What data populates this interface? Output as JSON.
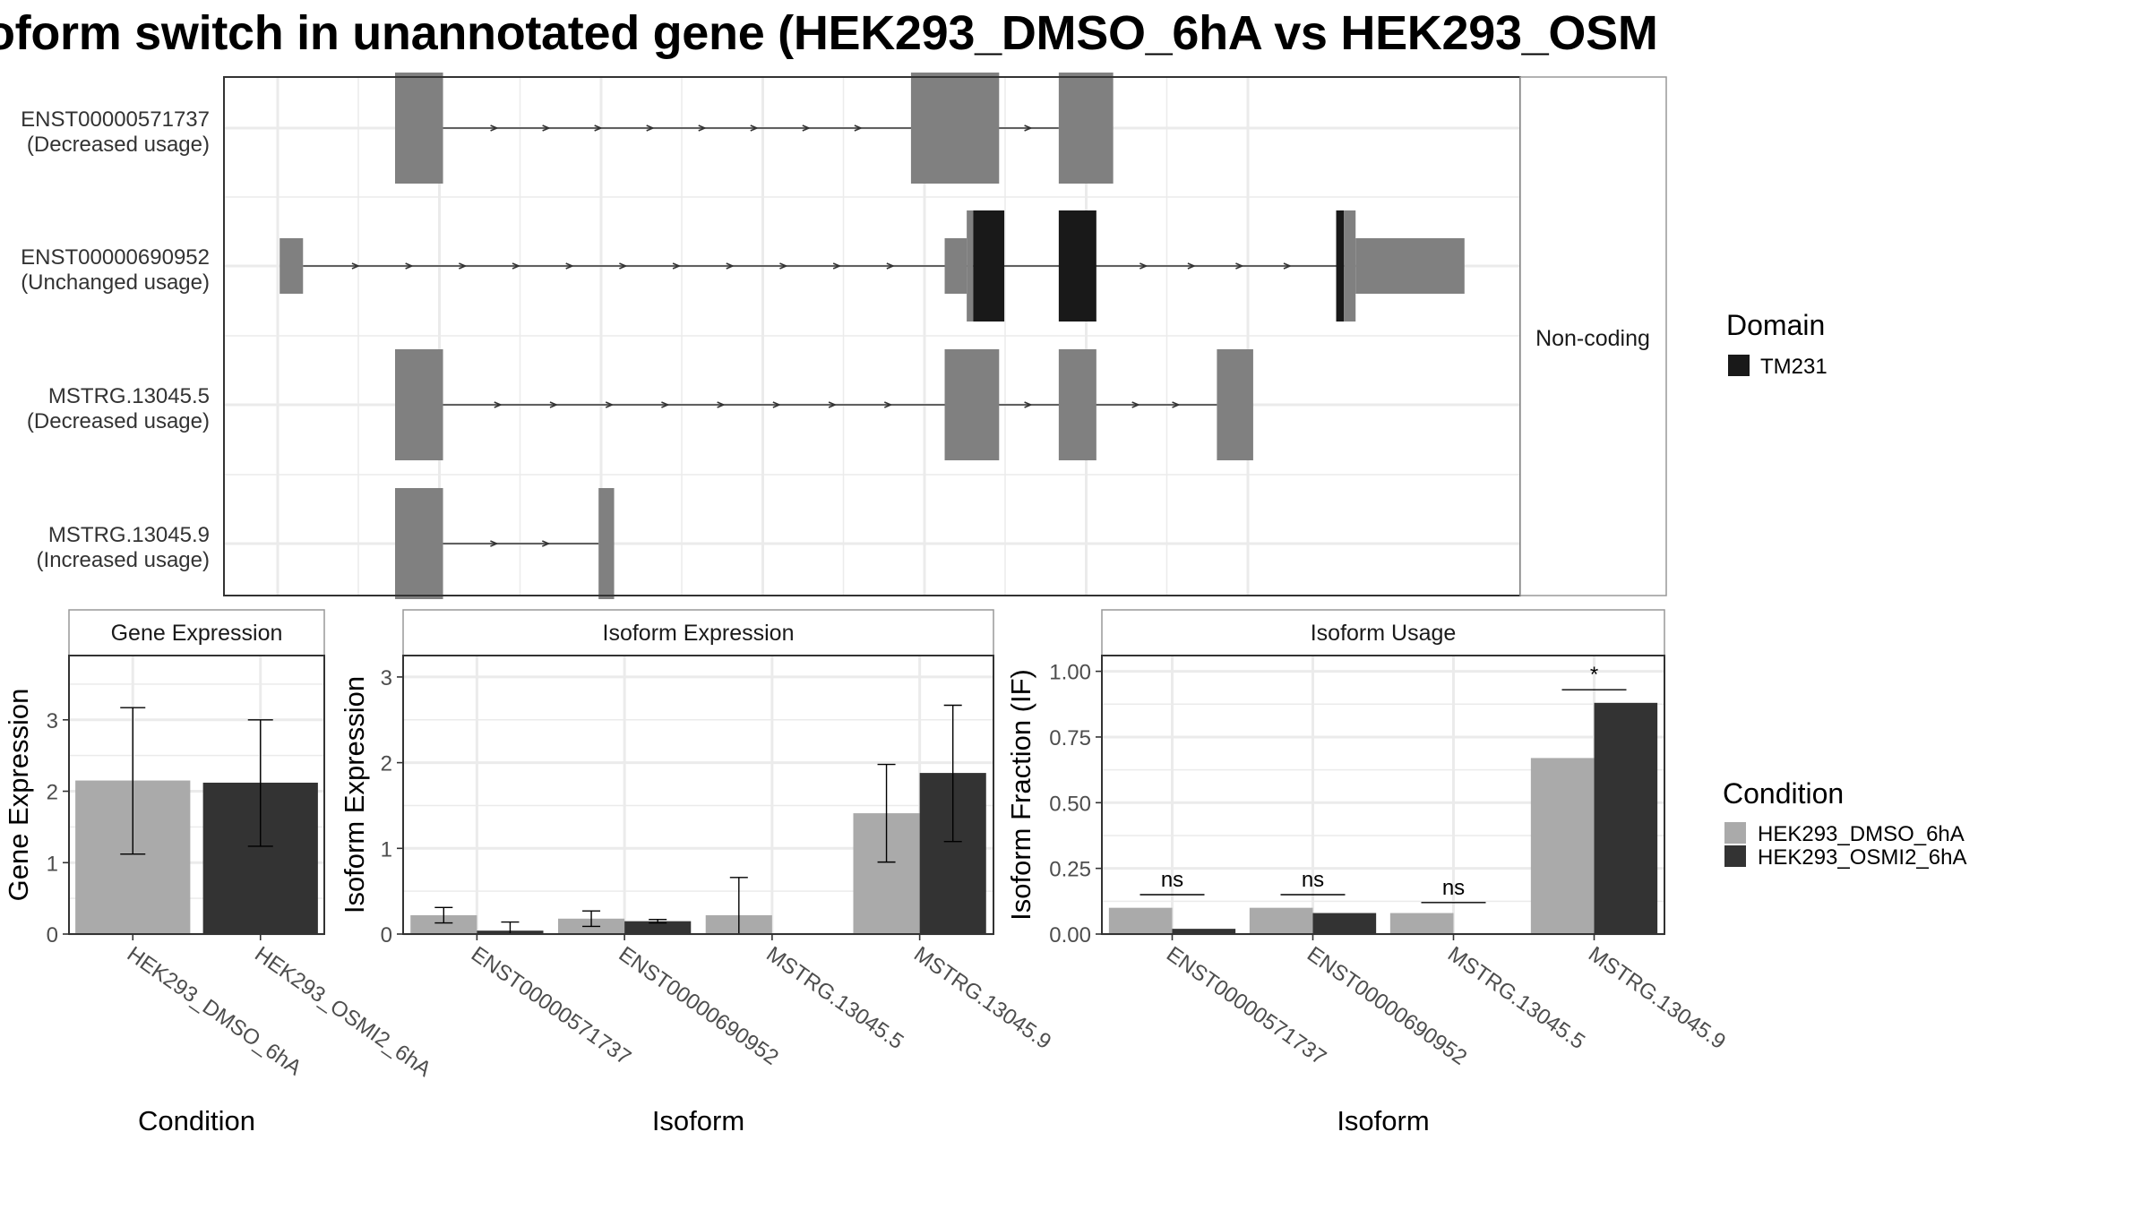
{
  "title": "oform switch in unannotated gene (HEK293_DMSO_6hA vs HEK293_OSM",
  "colors": {
    "cond1": "#aaaaaa",
    "cond2": "#333333",
    "exon": "#808080",
    "domain": "#191919",
    "grid": "#ebebeb",
    "panel_border": "#333333",
    "strip_border": "#999999"
  },
  "chart_data": [
    {
      "type": "gene-structure",
      "facet_label": "Non-coding",
      "legend": {
        "title": "Domain",
        "items": [
          {
            "name": "TM231",
            "color": "#191919"
          }
        ]
      },
      "xlim": [
        0,
        1
      ],
      "transcripts": [
        {
          "id": "ENST00000571737",
          "usage": "(Decreased usage)",
          "exons": [
            {
              "x": [
                0.132,
                0.169
              ],
              "kind": "exon"
            },
            {
              "x": [
                0.53,
                0.598
              ],
              "kind": "exon"
            },
            {
              "x": [
                0.644,
                0.686
              ],
              "kind": "exon"
            }
          ]
        },
        {
          "id": "ENST00000690952",
          "usage": "(Unchanged usage)",
          "exons": [
            {
              "x": [
                0.043,
                0.061
              ],
              "kind": "utr"
            },
            {
              "x": [
                0.556,
                0.573
              ],
              "kind": "utr"
            },
            {
              "x": [
                0.573,
                0.578
              ],
              "kind": "exon"
            },
            {
              "x": [
                0.578,
                0.602
              ],
              "kind": "domain"
            },
            {
              "x": [
                0.644,
                0.673
              ],
              "kind": "domain"
            },
            {
              "x": [
                0.858,
                0.864
              ],
              "kind": "domain"
            },
            {
              "x": [
                0.864,
                0.873
              ],
              "kind": "exon"
            },
            {
              "x": [
                0.873,
                0.957
              ],
              "kind": "utr"
            }
          ]
        },
        {
          "id": "MSTRG.13045.5",
          "usage": "(Decreased usage)",
          "exons": [
            {
              "x": [
                0.132,
                0.169
              ],
              "kind": "exon"
            },
            {
              "x": [
                0.556,
                0.598
              ],
              "kind": "exon"
            },
            {
              "x": [
                0.644,
                0.673
              ],
              "kind": "exon"
            },
            {
              "x": [
                0.766,
                0.794
              ],
              "kind": "exon"
            }
          ]
        },
        {
          "id": "MSTRG.13045.9",
          "usage": "(Increased usage)",
          "exons": [
            {
              "x": [
                0.132,
                0.169
              ],
              "kind": "exon"
            },
            {
              "x": [
                0.289,
                0.301
              ],
              "kind": "exon"
            }
          ]
        }
      ]
    },
    {
      "type": "bar",
      "panel_title": "Gene Expression",
      "xlabel": "Condition",
      "ylabel": "Gene Expression",
      "ylim": [
        0,
        3.9
      ],
      "yticks": [
        0,
        1,
        2,
        3
      ],
      "categories": [
        "HEK293_DMSO_6hA",
        "HEK293_OSMI2_6hA"
      ],
      "values": [
        2.15,
        2.12
      ],
      "errors": [
        [
          1.12,
          3.17
        ],
        [
          1.23,
          3.0
        ]
      ]
    },
    {
      "type": "bar",
      "panel_title": "Isoform Expression",
      "xlabel": "Isoform",
      "ylabel": "Isoform Expression",
      "ylim": [
        0,
        3.25
      ],
      "yticks": [
        0,
        1,
        2,
        3
      ],
      "categories": [
        "ENST00000571737",
        "ENST00000690952",
        "MSTRG.13045.5",
        "MSTRG.13045.9"
      ],
      "series": [
        {
          "name": "HEK293_DMSO_6hA",
          "values": [
            0.22,
            0.18,
            0.22,
            1.41
          ],
          "errors": [
            [
              0.13,
              0.31
            ],
            [
              0.09,
              0.27
            ],
            [
              0.0,
              0.66
            ],
            [
              0.84,
              1.98
            ]
          ]
        },
        {
          "name": "HEK293_OSMI2_6hA",
          "values": [
            0.04,
            0.15,
            0.0,
            1.88
          ],
          "errors": [
            [
              0.0,
              0.14
            ],
            [
              0.13,
              0.17
            ],
            [
              0.0,
              0.0
            ],
            [
              1.08,
              2.67
            ]
          ]
        }
      ]
    },
    {
      "type": "bar",
      "panel_title": "Isoform Usage",
      "xlabel": "Isoform",
      "ylabel": "Isoform Fraction (IF)",
      "ylim": [
        0,
        1.06
      ],
      "yticks": [
        0,
        0.25,
        0.5,
        0.75,
        1.0
      ],
      "ytick_labels": [
        "0.00",
        "0.25",
        "0.50",
        "0.75",
        "1.00"
      ],
      "categories": [
        "ENST00000571737",
        "ENST00000690952",
        "MSTRG.13045.5",
        "MSTRG.13045.9"
      ],
      "series": [
        {
          "name": "HEK293_DMSO_6hA",
          "values": [
            0.1,
            0.1,
            0.08,
            0.67
          ]
        },
        {
          "name": "HEK293_OSMI2_6hA",
          "values": [
            0.02,
            0.08,
            0.0,
            0.88
          ]
        }
      ],
      "significance": [
        {
          "label": "ns",
          "y": 0.15
        },
        {
          "label": "ns",
          "y": 0.15
        },
        {
          "label": "ns",
          "y": 0.12
        },
        {
          "label": "*",
          "y": 0.93
        }
      ]
    }
  ],
  "condition_legend": {
    "title": "Condition",
    "items": [
      {
        "name": "HEK293_DMSO_6hA",
        "color": "#aaaaaa"
      },
      {
        "name": "HEK293_OSMI2_6hA",
        "color": "#333333"
      }
    ]
  }
}
